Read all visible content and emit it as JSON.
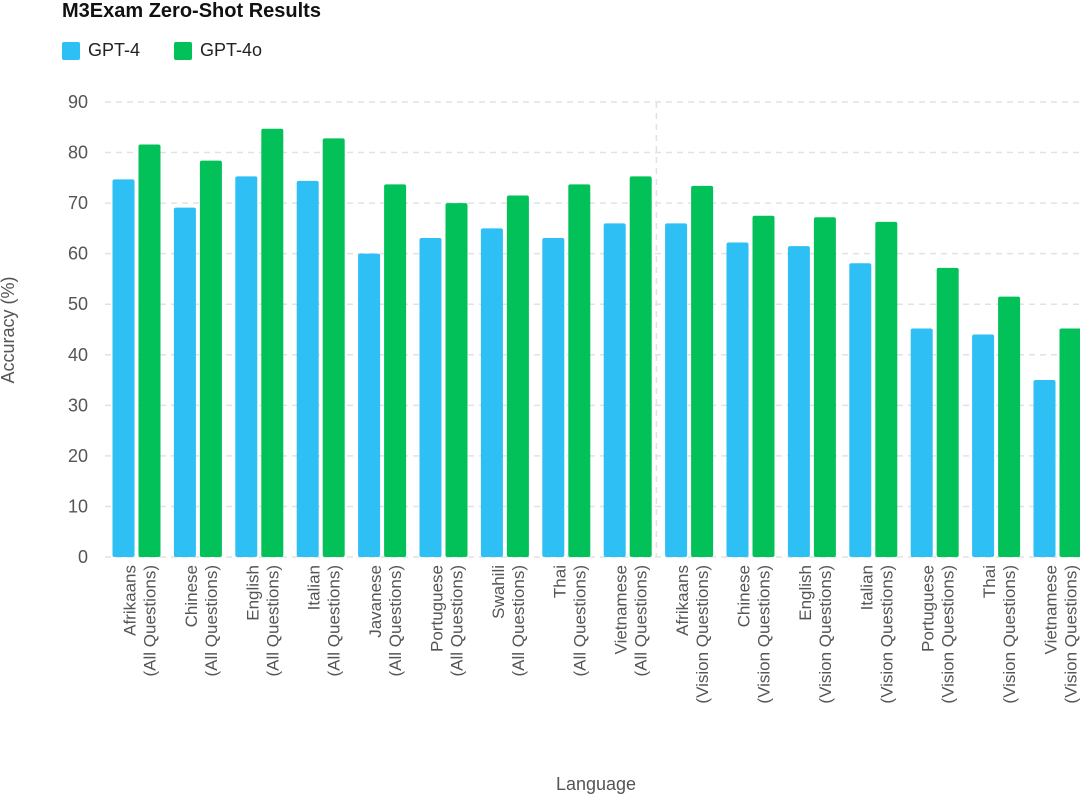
{
  "chart_data": {
    "type": "bar",
    "title": "M3Exam Zero-Shot Results",
    "xlabel": "Language",
    "ylabel": "Accuracy (%)",
    "ylim": [
      0,
      90
    ],
    "yticks": [
      0,
      10,
      20,
      30,
      40,
      50,
      60,
      70,
      80,
      90
    ],
    "grid": true,
    "legend_position": "top-left",
    "categories": [
      [
        "Afrikaans",
        "(All Questions)"
      ],
      [
        "Chinese",
        "(All Questions)"
      ],
      [
        "English",
        "(All Questions)"
      ],
      [
        "Italian",
        "(All Questions)"
      ],
      [
        "Javanese",
        "(All Questions)"
      ],
      [
        "Portuguese",
        "(All Questions)"
      ],
      [
        "Swahili",
        "(All Questions)"
      ],
      [
        "Thai",
        "(All Questions)"
      ],
      [
        "Vietnamese",
        "(All Questions)"
      ],
      [
        "Afrikaans",
        "(Vision Questions)"
      ],
      [
        "Chinese",
        "(Vision Questions)"
      ],
      [
        "English",
        "(Vision Questions)"
      ],
      [
        "Italian",
        "(Vision Questions)"
      ],
      [
        "Portuguese",
        "(Vision Questions)"
      ],
      [
        "Thai",
        "(Vision Questions)"
      ],
      [
        "Vietnamese",
        "(Vision Questions)"
      ]
    ],
    "series": [
      {
        "name": "GPT-4",
        "color": "#2EBFF5",
        "values": [
          74.7,
          69.1,
          75.3,
          74.4,
          60.0,
          63.1,
          65.0,
          63.1,
          66.0,
          66.0,
          62.2,
          61.5,
          58.1,
          45.2,
          44.0,
          35.0
        ]
      },
      {
        "name": "GPT-4o",
        "color": "#02C158",
        "values": [
          81.6,
          78.4,
          84.7,
          82.8,
          73.7,
          70.0,
          71.5,
          73.7,
          75.3,
          73.4,
          67.5,
          67.2,
          66.3,
          57.2,
          51.5,
          45.2
        ]
      }
    ]
  }
}
